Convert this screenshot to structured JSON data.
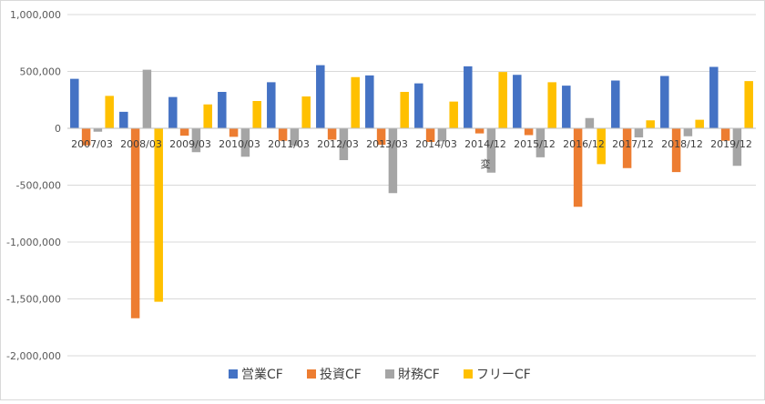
{
  "chart_data": {
    "type": "bar",
    "title": "",
    "xlabel": "",
    "ylabel": "",
    "ylim": [
      -2000000,
      1000000
    ],
    "yticks": [
      1000000,
      500000,
      0,
      -500000,
      -1000000,
      -1500000,
      -2000000
    ],
    "ytick_labels": [
      "1,000,000",
      "500,000",
      "0",
      "-500,000",
      "-1,000,000",
      "-1,500,000",
      "-2,000,000"
    ],
    "grid": true,
    "legend_position": "bottom",
    "categories": [
      "2007/03",
      "2008/03",
      "2009/03",
      "2010/03",
      "2011/03",
      "2012/03",
      "2013/03",
      "2014/03",
      "2014/12",
      "2015/12",
      "2016/12",
      "2017/12",
      "2018/12",
      "2019/12"
    ],
    "category_annotations": [
      {
        "category": "2014/12",
        "text": "変"
      }
    ],
    "series": [
      {
        "name": "営業CF",
        "color": "#4472C4",
        "values": [
          435000,
          145000,
          275000,
          320000,
          405000,
          555000,
          465000,
          395000,
          545000,
          470000,
          375000,
          420000,
          460000,
          540000
        ]
      },
      {
        "name": "投資CF",
        "color": "#ED7D31",
        "values": [
          -150000,
          -1670000,
          -65000,
          -75000,
          -110000,
          -100000,
          -145000,
          -120000,
          -45000,
          -60000,
          -690000,
          -350000,
          -385000,
          -110000
        ]
      },
      {
        "name": "財務CF",
        "color": "#A5A5A5",
        "values": [
          -30000,
          515000,
          -210000,
          -250000,
          -155000,
          -280000,
          -570000,
          -115000,
          -390000,
          -255000,
          90000,
          -80000,
          -70000,
          -330000
        ]
      },
      {
        "name": "フリーCF",
        "color": "#FFC000",
        "values": [
          285000,
          -1525000,
          210000,
          240000,
          280000,
          450000,
          320000,
          235000,
          495000,
          405000,
          -315000,
          70000,
          75000,
          415000
        ]
      }
    ]
  }
}
